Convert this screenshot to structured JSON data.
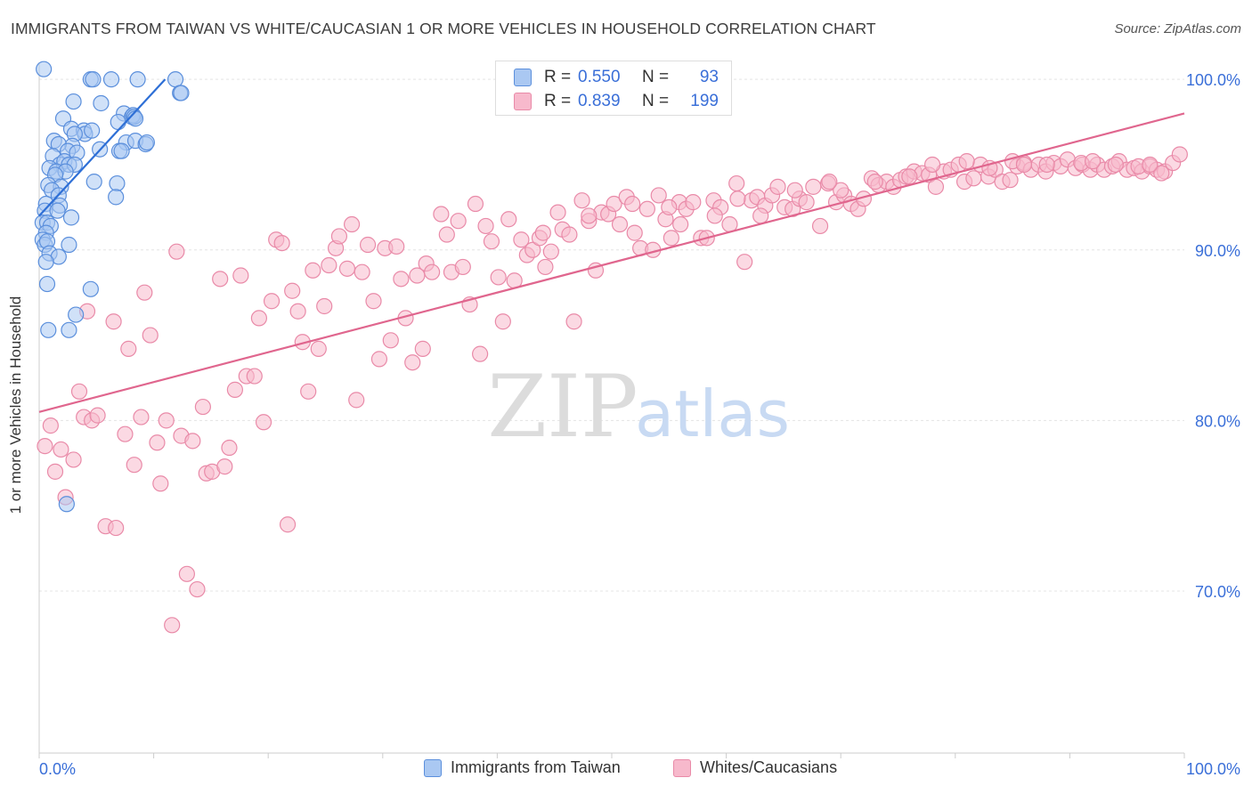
{
  "title": "IMMIGRANTS FROM TAIWAN VS WHITE/CAUCASIAN 1 OR MORE VEHICLES IN HOUSEHOLD CORRELATION CHART",
  "source": "Source: ZipAtlas.com",
  "watermark": {
    "zip": "ZIP",
    "atlas": "atlas"
  },
  "legend_top": {
    "rows": [
      {
        "r_label": "R =",
        "r_value": "0.550",
        "n_label": "N =",
        "n_value": "93"
      },
      {
        "r_label": "R =",
        "r_value": "0.839",
        "n_label": "N =",
        "n_value": "199"
      }
    ]
  },
  "colors": {
    "taiwan_fill": "#aac8f2",
    "taiwan_stroke": "#5b8fdc",
    "taiwan_line": "#2e6fd6",
    "white_fill": "#f7b9cc",
    "white_stroke": "#e98aa8",
    "white_line": "#e0668e",
    "axis_text": "#3a6fd8",
    "grid": "#e4e4e4"
  },
  "chart_data": {
    "type": "scatter",
    "ylabel": "1 or more Vehicles in Household",
    "xlabel": "",
    "x_tick_labels": [
      "0.0%",
      "100.0%"
    ],
    "y_tick_labels": [
      "100.0%",
      "90.0%",
      "80.0%",
      "70.0%"
    ],
    "y_ticks": [
      100,
      90,
      80,
      70
    ],
    "xlim": [
      0,
      100
    ],
    "ylim": [
      60.5,
      101
    ],
    "series": [
      {
        "name": "Immigrants from Taiwan",
        "trend": {
          "x0": 0,
          "y0": 92.0,
          "x1": 11,
          "y1": 100.0
        },
        "points": [
          [
            0.4,
            100.6
          ],
          [
            4.5,
            100.0
          ],
          [
            4.7,
            100.0
          ],
          [
            6.3,
            100.0
          ],
          [
            8.6,
            100.0
          ],
          [
            11.9,
            100.0
          ],
          [
            12.3,
            99.2
          ],
          [
            12.4,
            99.2
          ],
          [
            3.0,
            98.7
          ],
          [
            5.4,
            98.6
          ],
          [
            7.4,
            98.0
          ],
          [
            8.1,
            97.8
          ],
          [
            8.2,
            97.9
          ],
          [
            8.3,
            97.8
          ],
          [
            8.4,
            97.7
          ],
          [
            2.1,
            97.7
          ],
          [
            6.9,
            97.5
          ],
          [
            2.8,
            97.1
          ],
          [
            3.9,
            97.0
          ],
          [
            4.0,
            96.8
          ],
          [
            4.6,
            97.0
          ],
          [
            3.1,
            96.8
          ],
          [
            1.3,
            96.4
          ],
          [
            2.9,
            96.1
          ],
          [
            1.7,
            96.2
          ],
          [
            7.6,
            96.3
          ],
          [
            8.4,
            96.4
          ],
          [
            9.3,
            96.2
          ],
          [
            9.4,
            96.3
          ],
          [
            7.0,
            95.8
          ],
          [
            7.2,
            95.8
          ],
          [
            5.3,
            95.9
          ],
          [
            2.5,
            95.8
          ],
          [
            3.3,
            95.7
          ],
          [
            1.2,
            95.5
          ],
          [
            1.8,
            95.0
          ],
          [
            2.2,
            95.2
          ],
          [
            2.6,
            95.0
          ],
          [
            3.1,
            95.0
          ],
          [
            0.9,
            94.8
          ],
          [
            1.5,
            94.6
          ],
          [
            2.3,
            94.6
          ],
          [
            1.4,
            94.4
          ],
          [
            4.8,
            94.0
          ],
          [
            6.8,
            93.9
          ],
          [
            0.8,
            93.8
          ],
          [
            1.9,
            93.7
          ],
          [
            1.1,
            93.5
          ],
          [
            1.7,
            93.2
          ],
          [
            6.7,
            93.1
          ],
          [
            0.6,
            92.7
          ],
          [
            1.8,
            92.6
          ],
          [
            0.5,
            92.3
          ],
          [
            1.6,
            92.3
          ],
          [
            2.8,
            91.9
          ],
          [
            0.3,
            91.6
          ],
          [
            0.7,
            91.6
          ],
          [
            1.0,
            91.4
          ],
          [
            0.6,
            91.0
          ],
          [
            0.3,
            90.6
          ],
          [
            0.5,
            90.3
          ],
          [
            0.7,
            90.5
          ],
          [
            2.6,
            90.3
          ],
          [
            0.9,
            89.8
          ],
          [
            1.7,
            89.6
          ],
          [
            0.6,
            89.3
          ],
          [
            0.7,
            88.0
          ],
          [
            4.5,
            87.7
          ],
          [
            3.2,
            86.2
          ],
          [
            0.8,
            85.3
          ],
          [
            2.6,
            85.3
          ],
          [
            2.4,
            75.1
          ]
        ]
      },
      {
        "name": "Whites/Caucasians",
        "trend": {
          "x0": 0,
          "y0": 80.5,
          "x1": 100,
          "y1": 98.0
        },
        "points": [
          [
            0.5,
            78.5
          ],
          [
            1.0,
            79.7
          ],
          [
            1.4,
            77.0
          ],
          [
            1.9,
            78.3
          ],
          [
            2.3,
            75.5
          ],
          [
            3.0,
            77.7
          ],
          [
            3.5,
            81.7
          ],
          [
            3.9,
            80.2
          ],
          [
            4.2,
            86.4
          ],
          [
            4.6,
            80.0
          ],
          [
            5.1,
            80.3
          ],
          [
            5.8,
            73.8
          ],
          [
            6.5,
            85.8
          ],
          [
            6.7,
            73.7
          ],
          [
            7.5,
            79.2
          ],
          [
            7.8,
            84.2
          ],
          [
            8.3,
            77.4
          ],
          [
            8.9,
            80.2
          ],
          [
            9.2,
            87.5
          ],
          [
            9.7,
            85.0
          ],
          [
            10.3,
            78.7
          ],
          [
            10.6,
            76.3
          ],
          [
            11.1,
            80.0
          ],
          [
            11.6,
            68.0
          ],
          [
            12.0,
            89.9
          ],
          [
            12.4,
            79.1
          ],
          [
            12.9,
            71.0
          ],
          [
            13.4,
            78.8
          ],
          [
            13.8,
            70.1
          ],
          [
            14.3,
            80.8
          ],
          [
            14.6,
            76.9
          ],
          [
            15.1,
            77.0
          ],
          [
            15.8,
            88.3
          ],
          [
            16.2,
            77.3
          ],
          [
            16.6,
            78.4
          ],
          [
            17.1,
            81.8
          ],
          [
            17.6,
            88.5
          ],
          [
            18.1,
            82.6
          ],
          [
            18.8,
            82.6
          ],
          [
            19.2,
            86.0
          ],
          [
            19.6,
            79.9
          ],
          [
            20.3,
            87.0
          ],
          [
            20.7,
            90.6
          ],
          [
            21.2,
            90.4
          ],
          [
            21.7,
            73.9
          ],
          [
            22.1,
            87.6
          ],
          [
            22.6,
            86.4
          ],
          [
            23.0,
            84.6
          ],
          [
            23.5,
            81.7
          ],
          [
            23.9,
            88.8
          ],
          [
            24.4,
            84.2
          ],
          [
            24.9,
            86.7
          ],
          [
            25.3,
            89.1
          ],
          [
            25.9,
            90.1
          ],
          [
            26.2,
            90.8
          ],
          [
            26.9,
            88.9
          ],
          [
            27.3,
            91.5
          ],
          [
            27.7,
            81.2
          ],
          [
            28.2,
            88.7
          ],
          [
            28.7,
            90.3
          ],
          [
            29.2,
            87.0
          ],
          [
            29.7,
            83.6
          ],
          [
            30.2,
            90.1
          ],
          [
            30.7,
            84.7
          ],
          [
            31.2,
            90.2
          ],
          [
            31.6,
            88.3
          ],
          [
            32.0,
            86.0
          ],
          [
            32.6,
            83.4
          ],
          [
            33.0,
            88.5
          ],
          [
            33.5,
            84.2
          ],
          [
            33.8,
            89.2
          ],
          [
            34.3,
            88.7
          ],
          [
            35.1,
            92.1
          ],
          [
            35.6,
            90.9
          ],
          [
            36.0,
            88.7
          ],
          [
            36.6,
            91.7
          ],
          [
            37.0,
            89.0
          ],
          [
            37.6,
            86.8
          ],
          [
            38.1,
            92.7
          ],
          [
            38.5,
            83.9
          ],
          [
            39.0,
            91.4
          ],
          [
            39.5,
            90.5
          ],
          [
            40.1,
            88.4
          ],
          [
            40.5,
            85.8
          ],
          [
            41.0,
            91.8
          ],
          [
            41.5,
            88.2
          ],
          [
            42.1,
            90.6
          ],
          [
            42.6,
            89.7
          ],
          [
            43.1,
            90.0
          ],
          [
            43.7,
            90.7
          ],
          [
            44.2,
            89.0
          ],
          [
            44.7,
            89.9
          ],
          [
            45.3,
            92.2
          ],
          [
            45.7,
            91.2
          ],
          [
            46.3,
            90.9
          ],
          [
            46.7,
            85.8
          ],
          [
            47.4,
            92.9
          ],
          [
            48.0,
            91.7
          ],
          [
            48.6,
            88.8
          ],
          [
            49.1,
            92.2
          ],
          [
            49.7,
            92.1
          ],
          [
            50.2,
            92.7
          ],
          [
            50.7,
            91.5
          ],
          [
            51.3,
            93.1
          ],
          [
            51.8,
            92.7
          ],
          [
            52.5,
            90.1
          ],
          [
            53.1,
            92.4
          ],
          [
            53.6,
            90.0
          ],
          [
            54.1,
            93.2
          ],
          [
            54.7,
            91.8
          ],
          [
            55.2,
            90.7
          ],
          [
            55.9,
            92.8
          ],
          [
            56.5,
            92.4
          ],
          [
            57.1,
            92.8
          ],
          [
            57.8,
            90.7
          ],
          [
            58.3,
            90.7
          ],
          [
            58.9,
            92.9
          ],
          [
            59.5,
            92.5
          ],
          [
            60.3,
            91.5
          ],
          [
            60.9,
            93.9
          ],
          [
            61.6,
            89.3
          ],
          [
            62.2,
            92.9
          ],
          [
            62.7,
            93.1
          ],
          [
            63.4,
            92.6
          ],
          [
            64.0,
            93.2
          ],
          [
            64.5,
            93.7
          ],
          [
            65.1,
            92.5
          ],
          [
            65.8,
            92.4
          ],
          [
            66.4,
            93.0
          ],
          [
            67.0,
            92.8
          ],
          [
            67.6,
            93.7
          ],
          [
            68.2,
            91.4
          ],
          [
            68.9,
            93.9
          ],
          [
            69.6,
            92.8
          ],
          [
            70.3,
            93.2
          ],
          [
            70.9,
            92.7
          ],
          [
            71.5,
            92.4
          ],
          [
            72.0,
            93.0
          ],
          [
            72.7,
            94.2
          ],
          [
            73.3,
            93.8
          ],
          [
            74.0,
            94.0
          ],
          [
            74.6,
            93.7
          ],
          [
            75.2,
            94.1
          ],
          [
            75.7,
            94.3
          ],
          [
            76.4,
            94.6
          ],
          [
            77.1,
            94.5
          ],
          [
            77.7,
            94.4
          ],
          [
            78.3,
            93.7
          ],
          [
            79.0,
            94.6
          ],
          [
            79.6,
            94.7
          ],
          [
            80.3,
            95.0
          ],
          [
            80.8,
            94.0
          ],
          [
            81.6,
            94.2
          ],
          [
            82.2,
            95.0
          ],
          [
            82.9,
            94.3
          ],
          [
            83.5,
            94.7
          ],
          [
            84.1,
            94.0
          ],
          [
            84.8,
            94.1
          ],
          [
            85.4,
            94.9
          ],
          [
            86.0,
            95.1
          ],
          [
            86.6,
            94.7
          ],
          [
            87.3,
            95.0
          ],
          [
            87.9,
            94.6
          ],
          [
            88.6,
            95.1
          ],
          [
            89.2,
            94.9
          ],
          [
            89.8,
            95.3
          ],
          [
            90.5,
            94.8
          ],
          [
            91.1,
            95.0
          ],
          [
            91.8,
            94.7
          ],
          [
            92.4,
            95.0
          ],
          [
            93.0,
            94.7
          ],
          [
            93.7,
            94.9
          ],
          [
            94.3,
            95.2
          ],
          [
            95.0,
            94.7
          ],
          [
            95.6,
            94.8
          ],
          [
            96.3,
            94.6
          ],
          [
            97.0,
            94.9
          ],
          [
            97.6,
            94.7
          ],
          [
            98.3,
            94.6
          ],
          [
            99.0,
            95.1
          ],
          [
            99.6,
            95.6
          ],
          [
            81.0,
            95.2
          ],
          [
            85.0,
            95.2
          ],
          [
            88.0,
            95.0
          ],
          [
            91.0,
            95.1
          ],
          [
            94.0,
            95.0
          ],
          [
            96.0,
            94.9
          ],
          [
            98.0,
            94.5
          ],
          [
            83.0,
            94.8
          ],
          [
            76.0,
            94.3
          ],
          [
            73.0,
            94.0
          ],
          [
            70.0,
            93.5
          ],
          [
            66.0,
            93.5
          ],
          [
            63.0,
            92.0
          ],
          [
            59.0,
            92.0
          ],
          [
            56.0,
            91.5
          ],
          [
            52.0,
            91.0
          ],
          [
            69.0,
            94.0
          ],
          [
            78.0,
            95.0
          ],
          [
            86.0,
            95.0
          ],
          [
            92.0,
            95.2
          ],
          [
            97.0,
            95.0
          ],
          [
            61.0,
            93.0
          ],
          [
            55.0,
            92.5
          ],
          [
            48.0,
            92.0
          ],
          [
            44.0,
            91.0
          ]
        ]
      }
    ]
  }
}
